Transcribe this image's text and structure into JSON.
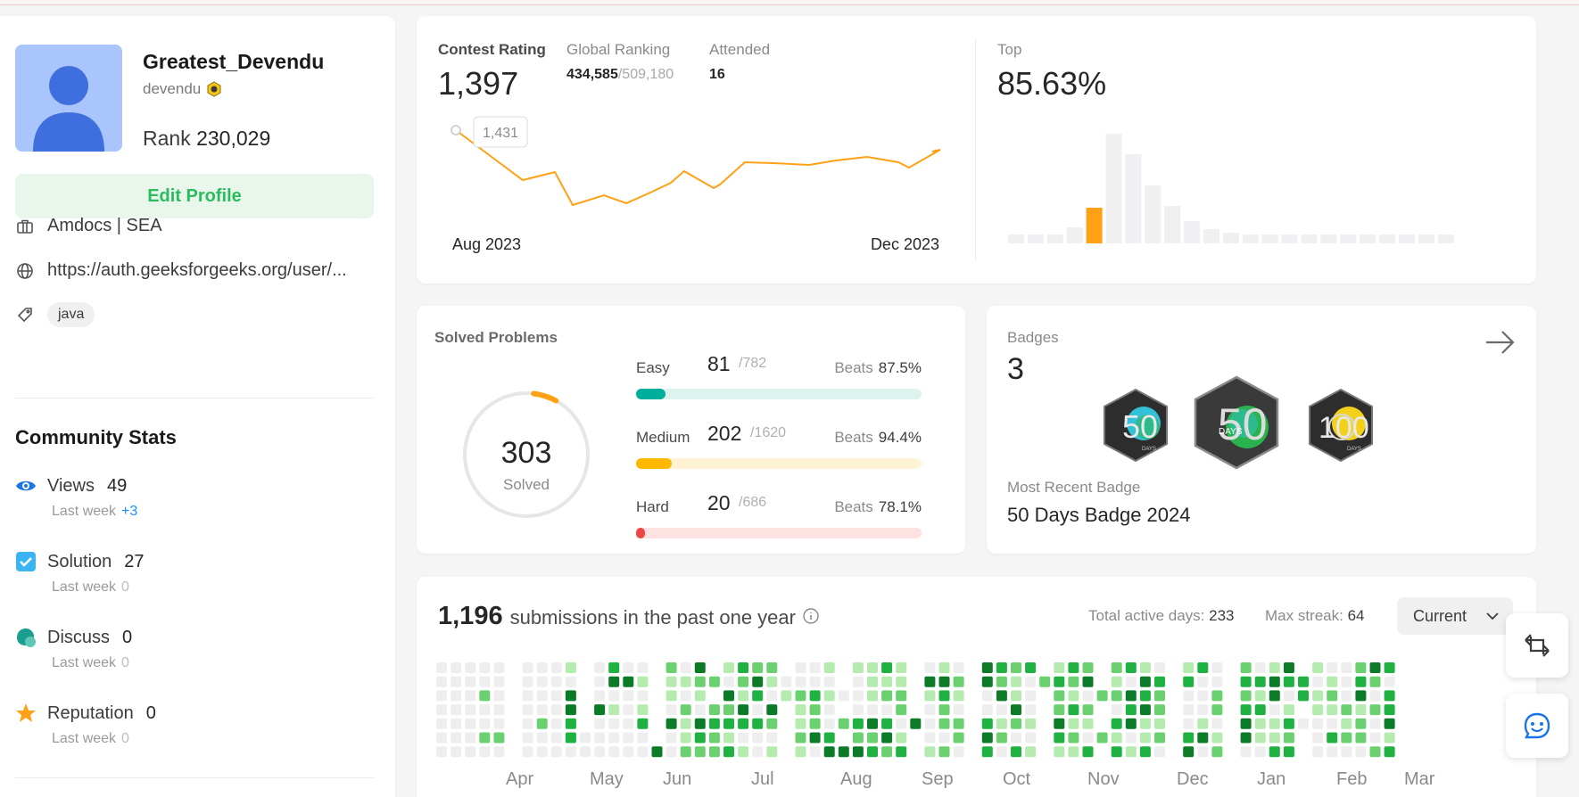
{
  "profile": {
    "username": "Greatest_Devendu",
    "handle": "devendu",
    "rank_label": "Rank",
    "rank_value": "230,029",
    "edit_label": "Edit Profile",
    "company": "Amdocs | SEA",
    "website": "https://auth.geeksforgeeks.org/user/...",
    "skill_tag": "java"
  },
  "community": {
    "title": "Community Stats",
    "last_week_label": "Last week",
    "views": {
      "label": "Views",
      "value": "49",
      "delta": "+3"
    },
    "solution": {
      "label": "Solution",
      "value": "27",
      "delta": "0"
    },
    "discuss": {
      "label": "Discuss",
      "value": "0",
      "delta": "0"
    },
    "reputation": {
      "label": "Reputation",
      "value": "0",
      "delta": "0"
    }
  },
  "contest": {
    "rating_label": "Contest Rating",
    "rating_value": "1,397",
    "global_label": "Global Ranking",
    "global_rank": "434,585",
    "global_total": "/509,180",
    "attended_label": "Attended",
    "attended_value": "16",
    "tooltip": "1,431",
    "start_label": "Aug 2023",
    "end_label": "Dec 2023",
    "top_label": "Top",
    "top_value": "85.63%"
  },
  "solved": {
    "title": "Solved Problems",
    "total": "303",
    "total_label": "Solved",
    "beats_label": "Beats",
    "easy": {
      "name": "Easy",
      "count": "81",
      "total": "/782",
      "beats": "87.5%",
      "fraction": 0.1036,
      "color": "#00af9b",
      "track": "#dcf3ee"
    },
    "medium": {
      "name": "Medium",
      "count": "202",
      "total": "/1620",
      "beats": "94.4%",
      "fraction": 0.1247,
      "color": "#ffb800",
      "track": "#fff3d6"
    },
    "hard": {
      "name": "Hard",
      "count": "20",
      "total": "/686",
      "beats": "78.1%",
      "fraction": 0.0292,
      "color": "#ef4743",
      "track": "#fde2e1"
    }
  },
  "badges": {
    "title": "Badges",
    "count": "3",
    "recent_label": "Most Recent Badge",
    "recent_name": "50 Days Badge 2024",
    "items": [
      {
        "label": "50",
        "sub": "DAYS"
      },
      {
        "label": "50",
        "sub": "DAYS"
      },
      {
        "label": "100",
        "sub": "DAYS"
      }
    ]
  },
  "submissions": {
    "count": "1,196",
    "text": "submissions in the past one year",
    "active_label": "Total active days:",
    "active_value": "233",
    "streak_label": "Max streak:",
    "streak_value": "64",
    "dropdown": "Current",
    "months": [
      "Apr",
      "May",
      "Jun",
      "Jul",
      "Aug",
      "Sep",
      "Oct",
      "Nov",
      "Dec",
      "Jan",
      "Feb",
      "Mar"
    ]
  },
  "colors": {
    "accent_green": "#2cbb5d",
    "contest_line": "#ffa116",
    "heat_levels": [
      "#eeeeee",
      "#b6ebb0",
      "#6bd06f",
      "#1fb141",
      "#0c7b27"
    ]
  }
}
